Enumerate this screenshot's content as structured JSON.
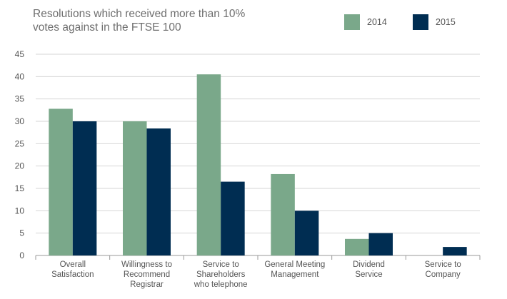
{
  "chart_data": {
    "type": "bar",
    "title_lines": [
      "Resolutions which received more than 10%",
      "votes against in the FTSE 100"
    ],
    "categories": [
      [
        "Overall",
        "Satisfaction"
      ],
      [
        "Willingness to",
        "Recommend",
        "Registrar"
      ],
      [
        "Service to",
        "Shareholders",
        "who telephone"
      ],
      [
        "General Meeting",
        "Management"
      ],
      [
        "Dividend",
        "Service"
      ],
      [
        "Service to",
        "Company"
      ]
    ],
    "series": [
      {
        "name": "2014",
        "color": "#7aa88a",
        "values": [
          32.8,
          30,
          40.5,
          18.2,
          3.7,
          0
        ]
      },
      {
        "name": "2015",
        "color": "#002d52",
        "values": [
          30,
          28.4,
          16.5,
          10,
          5,
          1.9
        ]
      }
    ],
    "ylim": [
      0,
      45
    ],
    "yticks": [
      0,
      5,
      10,
      15,
      20,
      25,
      30,
      35,
      40,
      45
    ],
    "grid": true,
    "legend_position": "top-right"
  }
}
